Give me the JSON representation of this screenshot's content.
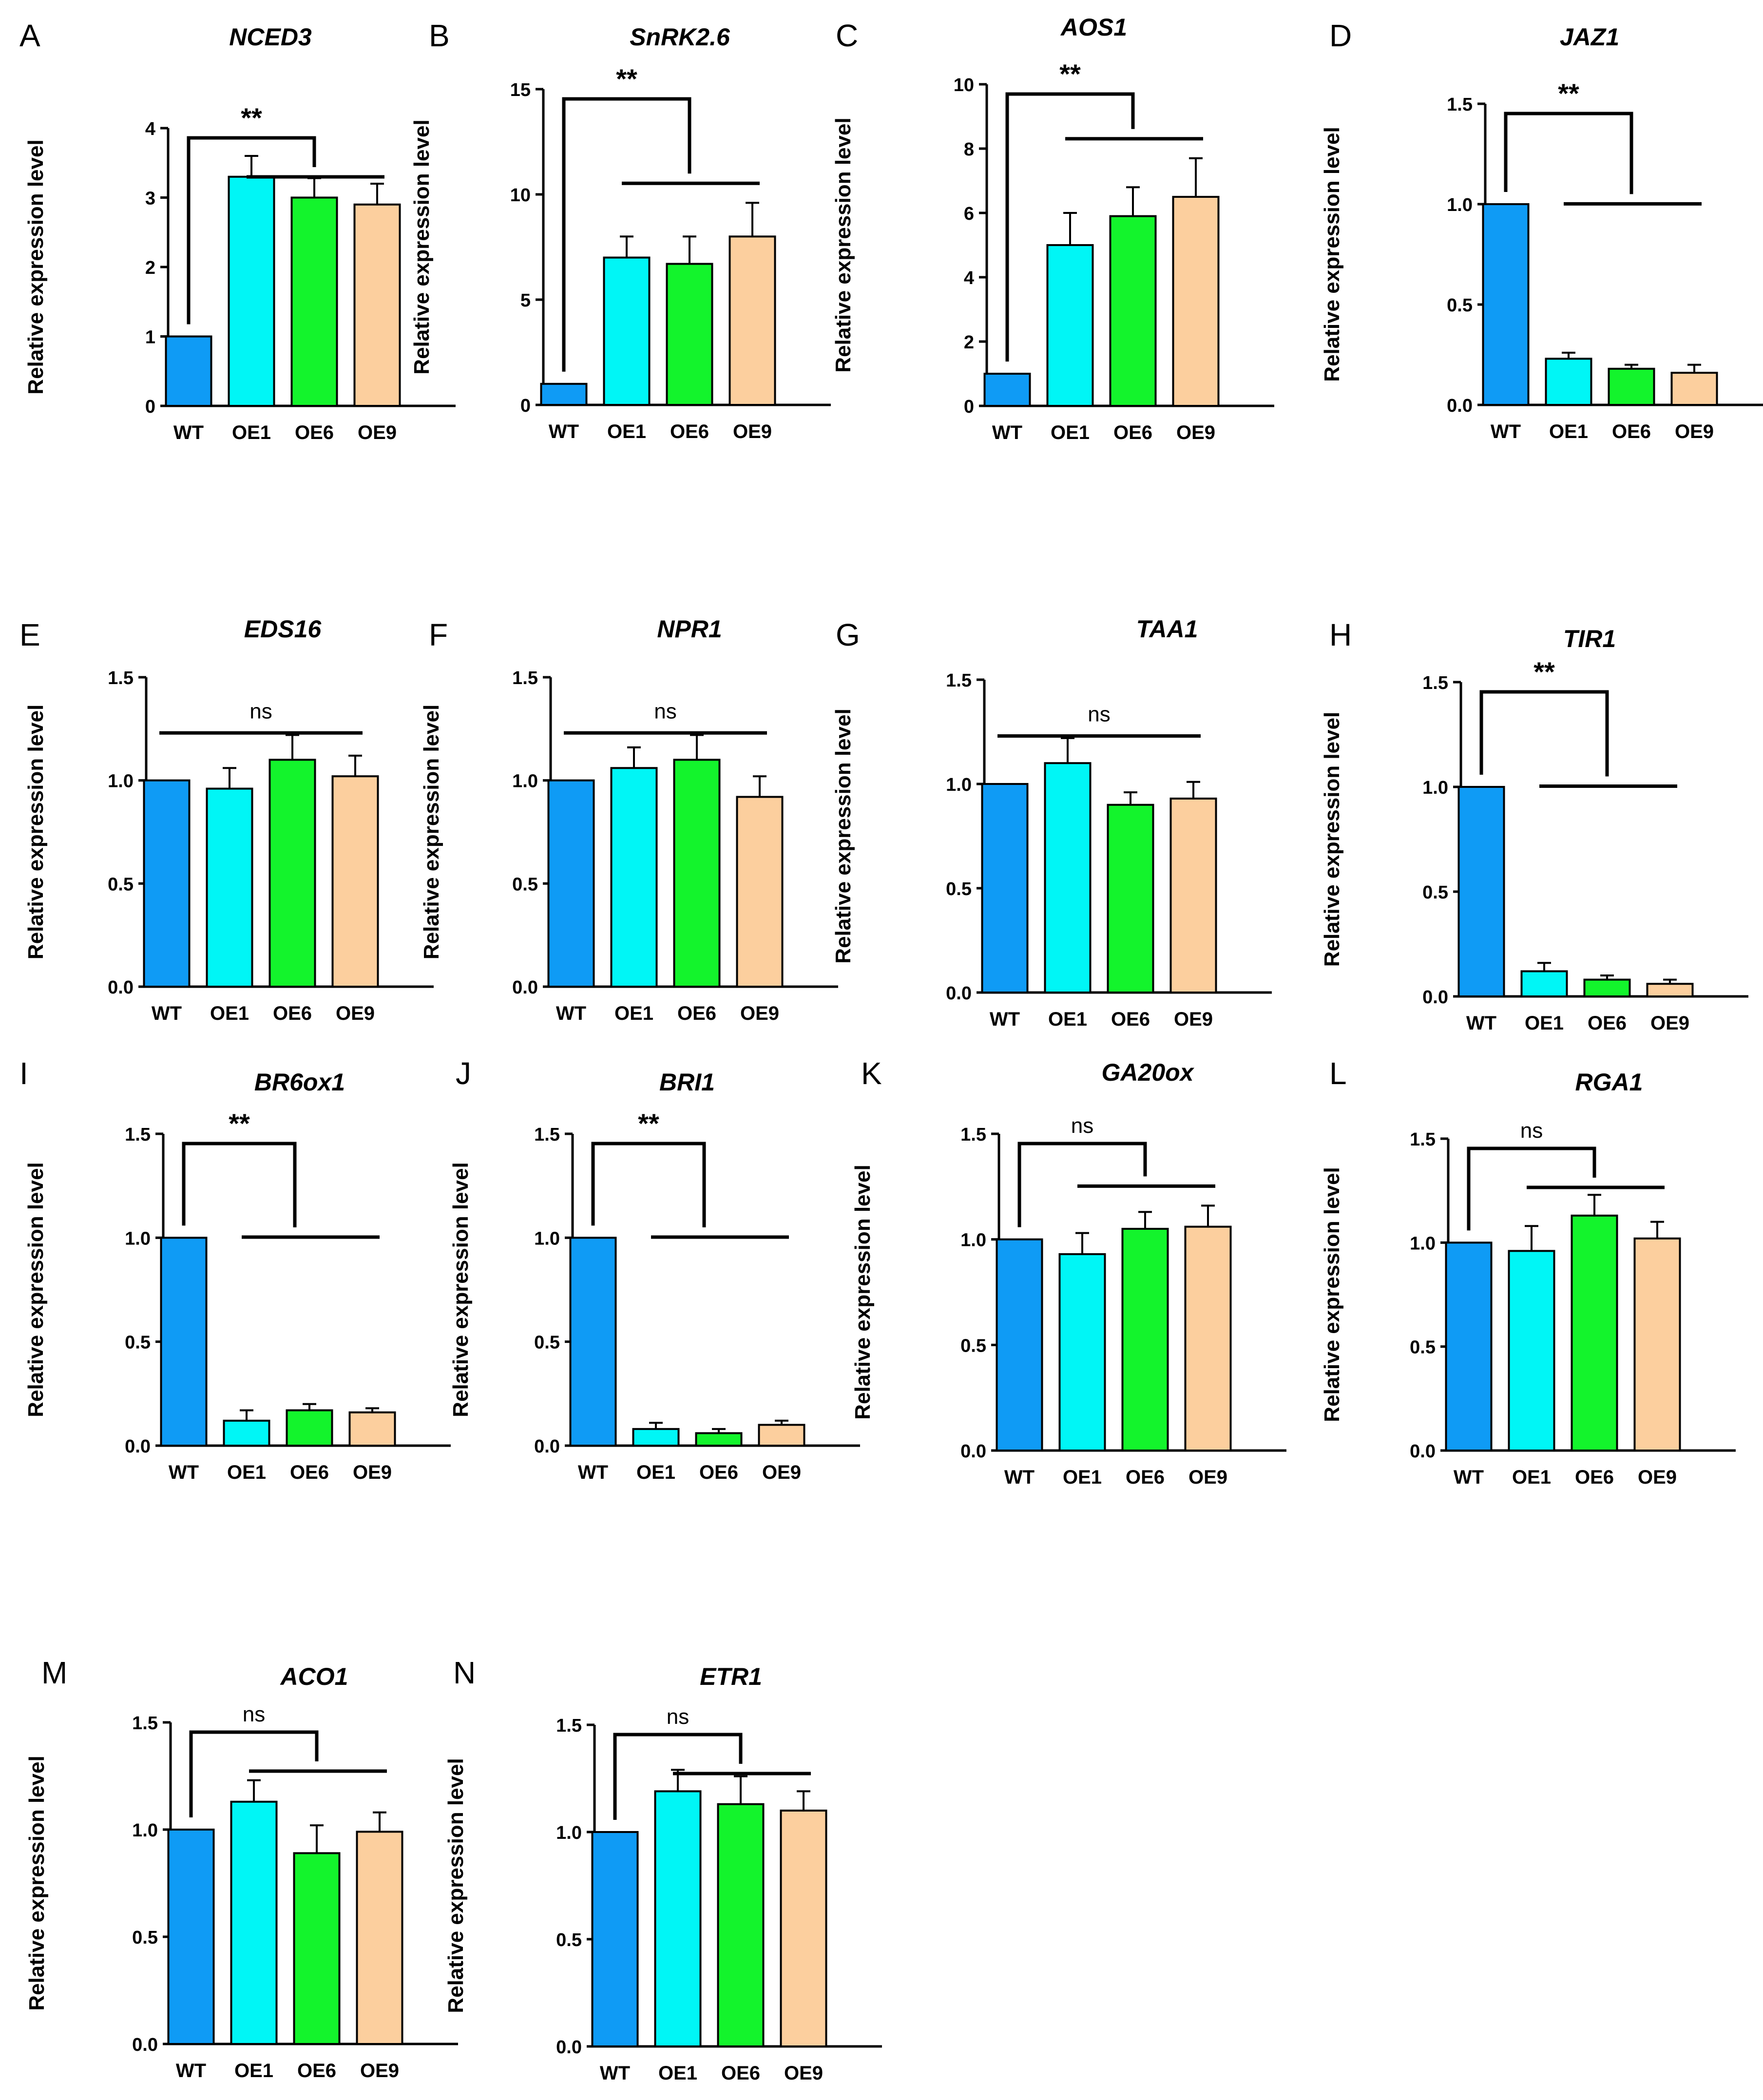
{
  "figure": {
    "ylabel": "Relative expression level",
    "categories": [
      "WT",
      "OE1",
      "OE6",
      "OE9"
    ],
    "colors": [
      "#0f9bf5",
      "#00f6f6",
      "#13f42c",
      "#fccf9e"
    ]
  },
  "chart_data": [
    {
      "type": "bar",
      "panel": "A",
      "title": "NCED3",
      "ylabel": "Relative expression level",
      "categories": [
        "WT",
        "OE1",
        "OE6",
        "OE9"
      ],
      "values": [
        1.0,
        3.3,
        3.0,
        2.9
      ],
      "errors": [
        0,
        0.3,
        0.28,
        0.3
      ],
      "ylim": [
        0,
        4
      ],
      "yticks": [
        "0",
        "1",
        "2",
        "3",
        "4"
      ],
      "significance": "**"
    },
    {
      "type": "bar",
      "panel": "B",
      "title": "SnRK2.6",
      "ylabel": "Relative expression level",
      "categories": [
        "WT",
        "OE1",
        "OE6",
        "OE9"
      ],
      "values": [
        1.0,
        7.0,
        6.7,
        8.0
      ],
      "errors": [
        0,
        1.0,
        1.3,
        1.6
      ],
      "ylim": [
        0,
        15
      ],
      "yticks": [
        "0",
        "5",
        "10",
        "15"
      ],
      "significance": "**"
    },
    {
      "type": "bar",
      "panel": "C",
      "title": "AOS1",
      "ylabel": "Relative expression level",
      "categories": [
        "WT",
        "OE1",
        "OE6",
        "OE9"
      ],
      "values": [
        1.0,
        5.0,
        5.9,
        6.5
      ],
      "errors": [
        0,
        1.0,
        0.9,
        1.2
      ],
      "ylim": [
        0,
        10
      ],
      "yticks": [
        "0",
        "2",
        "4",
        "6",
        "8",
        "10"
      ],
      "significance": "**"
    },
    {
      "type": "bar",
      "panel": "D",
      "title": "JAZ1",
      "ylabel": "Relative expression level",
      "categories": [
        "WT",
        "OE1",
        "OE6",
        "OE9"
      ],
      "values": [
        1.0,
        0.23,
        0.18,
        0.16
      ],
      "errors": [
        0,
        0.03,
        0.02,
        0.04
      ],
      "ylim": [
        0,
        1.5
      ],
      "yticks": [
        "0.0",
        "0.5",
        "1.0",
        "1.5"
      ],
      "significance": "**"
    },
    {
      "type": "bar",
      "panel": "E",
      "title": "EDS16",
      "ylabel": "Relative expression level",
      "categories": [
        "WT",
        "OE1",
        "OE6",
        "OE9"
      ],
      "values": [
        1.0,
        0.96,
        1.1,
        1.02
      ],
      "errors": [
        0,
        0.1,
        0.12,
        0.1
      ],
      "ylim": [
        0,
        1.5
      ],
      "yticks": [
        "0.0",
        "0.5",
        "1.0",
        "1.5"
      ],
      "significance": "ns"
    },
    {
      "type": "bar",
      "panel": "F",
      "title": "NPR1",
      "ylabel": "Relative expression level",
      "categories": [
        "WT",
        "OE1",
        "OE6",
        "OE9"
      ],
      "values": [
        1.0,
        1.06,
        1.1,
        0.92
      ],
      "errors": [
        0,
        0.1,
        0.12,
        0.1
      ],
      "ylim": [
        0,
        1.5
      ],
      "yticks": [
        "0.0",
        "0.5",
        "1.0",
        "1.5"
      ],
      "significance": "ns"
    },
    {
      "type": "bar",
      "panel": "G",
      "title": "TAA1",
      "ylabel": "Relative expression level",
      "categories": [
        "WT",
        "OE1",
        "OE6",
        "OE9"
      ],
      "values": [
        1.0,
        1.1,
        0.9,
        0.93
      ],
      "errors": [
        0,
        0.12,
        0.06,
        0.08
      ],
      "ylim": [
        0,
        1.5
      ],
      "yticks": [
        "0.0",
        "0.5",
        "1.0",
        "1.5"
      ],
      "significance": "ns"
    },
    {
      "type": "bar",
      "panel": "H",
      "title": "TIR1",
      "ylabel": "Relative expression level",
      "categories": [
        "WT",
        "OE1",
        "OE6",
        "OE9"
      ],
      "values": [
        1.0,
        0.12,
        0.08,
        0.06
      ],
      "errors": [
        0,
        0.04,
        0.02,
        0.02
      ],
      "ylim": [
        0,
        1.5
      ],
      "yticks": [
        "0.0",
        "0.5",
        "1.0",
        "1.5"
      ],
      "significance": "**"
    },
    {
      "type": "bar",
      "panel": "I",
      "title": "BR6ox1",
      "ylabel": "Relative expression level",
      "categories": [
        "WT",
        "OE1",
        "OE6",
        "OE9"
      ],
      "values": [
        1.0,
        0.12,
        0.17,
        0.16
      ],
      "errors": [
        0,
        0.05,
        0.03,
        0.02
      ],
      "ylim": [
        0,
        1.5
      ],
      "yticks": [
        "0.0",
        "0.5",
        "1.0",
        "1.5"
      ],
      "significance": "**"
    },
    {
      "type": "bar",
      "panel": "J",
      "title": "BRI1",
      "ylabel": "Relative expression level",
      "categories": [
        "WT",
        "OE1",
        "OE6",
        "OE9"
      ],
      "values": [
        1.0,
        0.08,
        0.06,
        0.1
      ],
      "errors": [
        0,
        0.03,
        0.02,
        0.02
      ],
      "ylim": [
        0,
        1.5
      ],
      "yticks": [
        "0.0",
        "0.5",
        "1.0",
        "1.5"
      ],
      "significance": "**"
    },
    {
      "type": "bar",
      "panel": "K",
      "title": "GA20ox",
      "ylabel": "Relative expression level",
      "categories": [
        "WT",
        "OE1",
        "OE6",
        "OE9"
      ],
      "values": [
        1.0,
        0.93,
        1.05,
        1.06
      ],
      "errors": [
        0,
        0.1,
        0.08,
        0.1
      ],
      "ylim": [
        0,
        1.5
      ],
      "yticks": [
        "0.0",
        "0.5",
        "1.0",
        "1.5"
      ],
      "significance": "ns"
    },
    {
      "type": "bar",
      "panel": "L",
      "title": "RGA1",
      "ylabel": "Relative expression level",
      "categories": [
        "WT",
        "OE1",
        "OE6",
        "OE9"
      ],
      "values": [
        1.0,
        0.96,
        1.13,
        1.02
      ],
      "errors": [
        0,
        0.12,
        0.1,
        0.08
      ],
      "ylim": [
        0,
        1.5
      ],
      "yticks": [
        "0.0",
        "0.5",
        "1.0",
        "1.5"
      ],
      "significance": "ns"
    },
    {
      "type": "bar",
      "panel": "M",
      "title": "ACO1",
      "ylabel": "Relative expression level",
      "categories": [
        "WT",
        "OE1",
        "OE6",
        "OE9"
      ],
      "values": [
        1.0,
        1.13,
        0.89,
        0.99
      ],
      "errors": [
        0,
        0.1,
        0.13,
        0.09
      ],
      "ylim": [
        0,
        1.5
      ],
      "yticks": [
        "0.0",
        "0.5",
        "1.0",
        "1.5"
      ],
      "significance": "ns"
    },
    {
      "type": "bar",
      "panel": "N",
      "title": "ETR1",
      "ylabel": "Relative expression level",
      "categories": [
        "WT",
        "OE1",
        "OE6",
        "OE9"
      ],
      "values": [
        1.0,
        1.19,
        1.13,
        1.1
      ],
      "errors": [
        0,
        0.1,
        0.13,
        0.09
      ],
      "ylim": [
        0,
        1.5
      ],
      "yticks": [
        "0.0",
        "0.5",
        "1.0",
        "1.5"
      ],
      "significance": "ns"
    }
  ]
}
